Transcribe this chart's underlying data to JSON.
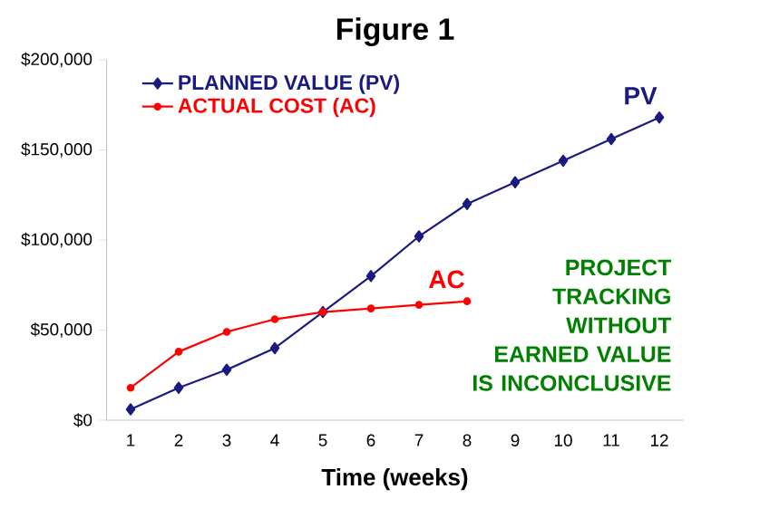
{
  "chart_data": {
    "type": "line",
    "title": "Figure 1",
    "xlabel": "Time (weeks)",
    "categories": [
      "1",
      "2",
      "3",
      "4",
      "5",
      "6",
      "7",
      "8",
      "9",
      "10",
      "11",
      "12"
    ],
    "series": [
      {
        "name": "PLANNED VALUE (PV)",
        "color": "#1a1a80",
        "marker": "diamond",
        "values": [
          6000,
          18000,
          28000,
          40000,
          60000,
          80000,
          102000,
          120000,
          132000,
          144000,
          156000,
          168000
        ]
      },
      {
        "name": "ACTUAL COST (AC)",
        "color": "#ff0000",
        "marker": "circle",
        "values": [
          18000,
          38000,
          49000,
          56000,
          60000,
          62000,
          64000,
          66000,
          null,
          null,
          null,
          null
        ]
      }
    ],
    "ylim": [
      0,
      200000
    ],
    "yticks": [
      {
        "value": 0,
        "label": "$0"
      },
      {
        "value": 50000,
        "label": "$50,000"
      },
      {
        "value": 100000,
        "label": "$100,000"
      },
      {
        "value": 150000,
        "label": "$150,000"
      },
      {
        "value": 200000,
        "label": "$200,000"
      }
    ],
    "grid": false,
    "legend": "top left",
    "line_style": "solid",
    "annotations": [
      {
        "text": "PV",
        "x": "12",
        "y": 168000
      },
      {
        "text": "AC",
        "x": "8",
        "y": 66000
      },
      "PROJECT TRACKING WITHOUT EARNED VALUE IS INCONCLUSIVE"
    ]
  }
}
